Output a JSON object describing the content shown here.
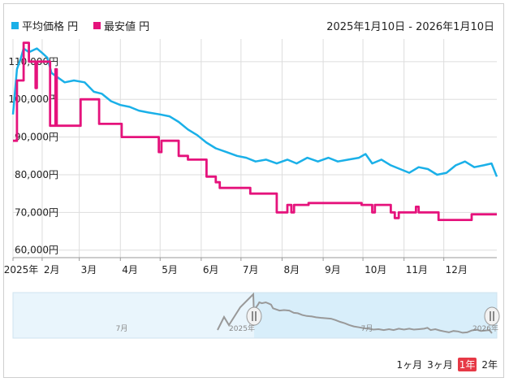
{
  "legend": {
    "avg_label": "平均価格 円",
    "min_label": "最安値 円",
    "avg_color": "#1ab0e8",
    "min_color": "#e5137c"
  },
  "date_range": "2025年1月10日 - 2026年1月10日",
  "periods": [
    "1ヶ月",
    "3ヶ月",
    "1年",
    "2年"
  ],
  "active_period": "1年",
  "navigator": {
    "labels": [
      "7月",
      "2025年",
      "7月",
      "2026年"
    ]
  },
  "chart_data": {
    "type": "line",
    "title": "",
    "xlabel": "",
    "ylabel": "",
    "x_tick_labels": [
      "2025年",
      "2月",
      "3月",
      "4月",
      "5月",
      "6月",
      "7月",
      "8月",
      "9月",
      "10月",
      "11月",
      "12月"
    ],
    "y_tick_labels": [
      "60,000円",
      "70,000円",
      "80,000円",
      "90,000円",
      "100,000円",
      "110,000円"
    ],
    "y_ticks": [
      60000,
      70000,
      80000,
      90000,
      100000,
      110000
    ],
    "ylim": [
      58000,
      116000
    ],
    "xlim": [
      "2025-01-10",
      "2026-01-10"
    ],
    "grid": true,
    "series": [
      {
        "name": "平均価格 円",
        "color": "#1ab0e8",
        "points": [
          [
            "2025-01-10",
            96000
          ],
          [
            "2025-01-13",
            108000
          ],
          [
            "2025-01-16",
            111000
          ],
          [
            "2025-01-18",
            113500
          ],
          [
            "2025-01-22",
            112500
          ],
          [
            "2025-01-28",
            113500
          ],
          [
            "2025-02-02",
            112000
          ],
          [
            "2025-02-05",
            111000
          ],
          [
            "2025-02-08",
            107000
          ],
          [
            "2025-02-12",
            106000
          ],
          [
            "2025-02-18",
            104500
          ],
          [
            "2025-02-25",
            105000
          ],
          [
            "2025-03-05",
            104500
          ],
          [
            "2025-03-12",
            102000
          ],
          [
            "2025-03-18",
            101500
          ],
          [
            "2025-03-25",
            99500
          ],
          [
            "2025-04-01",
            98500
          ],
          [
            "2025-04-08",
            98000
          ],
          [
            "2025-04-15",
            97000
          ],
          [
            "2025-04-22",
            96500
          ],
          [
            "2025-05-01",
            96000
          ],
          [
            "2025-05-08",
            95500
          ],
          [
            "2025-05-15",
            94000
          ],
          [
            "2025-05-22",
            92000
          ],
          [
            "2025-05-29",
            90500
          ],
          [
            "2025-06-05",
            88500
          ],
          [
            "2025-06-12",
            87000
          ],
          [
            "2025-06-20",
            86000
          ],
          [
            "2025-06-28",
            85000
          ],
          [
            "2025-07-05",
            84500
          ],
          [
            "2025-07-12",
            83500
          ],
          [
            "2025-07-20",
            84000
          ],
          [
            "2025-07-28",
            83000
          ],
          [
            "2025-08-05",
            84000
          ],
          [
            "2025-08-12",
            83000
          ],
          [
            "2025-08-20",
            84500
          ],
          [
            "2025-08-28",
            83500
          ],
          [
            "2025-09-05",
            84500
          ],
          [
            "2025-09-12",
            83500
          ],
          [
            "2025-09-20",
            84000
          ],
          [
            "2025-09-28",
            84500
          ],
          [
            "2025-10-03",
            85500
          ],
          [
            "2025-10-08",
            83000
          ],
          [
            "2025-10-15",
            84000
          ],
          [
            "2025-10-22",
            82500
          ],
          [
            "2025-10-29",
            81500
          ],
          [
            "2025-11-05",
            80500
          ],
          [
            "2025-11-12",
            82000
          ],
          [
            "2025-11-19",
            81500
          ],
          [
            "2025-11-26",
            80000
          ],
          [
            "2025-12-03",
            80500
          ],
          [
            "2025-12-10",
            82500
          ],
          [
            "2025-12-17",
            83500
          ],
          [
            "2025-12-24",
            82000
          ],
          [
            "2025-12-31",
            82500
          ],
          [
            "2026-01-06",
            83000
          ],
          [
            "2026-01-10",
            79500
          ]
        ]
      },
      {
        "name": "最安値 円",
        "color": "#e5137c",
        "points": [
          [
            "2025-01-10",
            89000
          ],
          [
            "2025-01-13",
            105000
          ],
          [
            "2025-01-18",
            115000
          ],
          [
            "2025-01-22",
            110000
          ],
          [
            "2025-01-26",
            110000
          ],
          [
            "2025-01-27",
            103000
          ],
          [
            "2025-01-28",
            110000
          ],
          [
            "2025-02-06",
            110000
          ],
          [
            "2025-02-07",
            93000
          ],
          [
            "2025-02-10",
            93000
          ],
          [
            "2025-02-11",
            108000
          ],
          [
            "2025-02-12",
            93000
          ],
          [
            "2025-03-01",
            93000
          ],
          [
            "2025-03-02",
            100000
          ],
          [
            "2025-03-15",
            100000
          ],
          [
            "2025-03-16",
            93500
          ],
          [
            "2025-04-01",
            93500
          ],
          [
            "2025-04-02",
            90000
          ],
          [
            "2025-04-28",
            90000
          ],
          [
            "2025-04-30",
            86000
          ],
          [
            "2025-05-02",
            89000
          ],
          [
            "2025-05-12",
            89000
          ],
          [
            "2025-05-15",
            85000
          ],
          [
            "2025-05-22",
            84000
          ],
          [
            "2025-06-01",
            84000
          ],
          [
            "2025-06-05",
            79500
          ],
          [
            "2025-06-12",
            78000
          ],
          [
            "2025-06-15",
            76500
          ],
          [
            "2025-07-05",
            76500
          ],
          [
            "2025-07-08",
            75000
          ],
          [
            "2025-07-25",
            75000
          ],
          [
            "2025-07-28",
            70000
          ],
          [
            "2025-08-05",
            72000
          ],
          [
            "2025-08-08",
            70000
          ],
          [
            "2025-08-10",
            72000
          ],
          [
            "2025-08-20",
            72000
          ],
          [
            "2025-08-21",
            72500
          ],
          [
            "2025-09-28",
            72500
          ],
          [
            "2025-09-30",
            72000
          ],
          [
            "2025-10-06",
            72000
          ],
          [
            "2025-10-08",
            70000
          ],
          [
            "2025-10-10",
            72000
          ],
          [
            "2025-10-22",
            70000
          ],
          [
            "2025-10-25",
            68500
          ],
          [
            "2025-10-28",
            70000
          ],
          [
            "2025-11-08",
            70000
          ],
          [
            "2025-11-10",
            71500
          ],
          [
            "2025-11-12",
            70000
          ],
          [
            "2025-11-25",
            70000
          ],
          [
            "2025-11-27",
            68000
          ],
          [
            "2025-12-20",
            68000
          ],
          [
            "2025-12-22",
            69500
          ],
          [
            "2026-01-10",
            69500
          ]
        ]
      }
    ]
  }
}
